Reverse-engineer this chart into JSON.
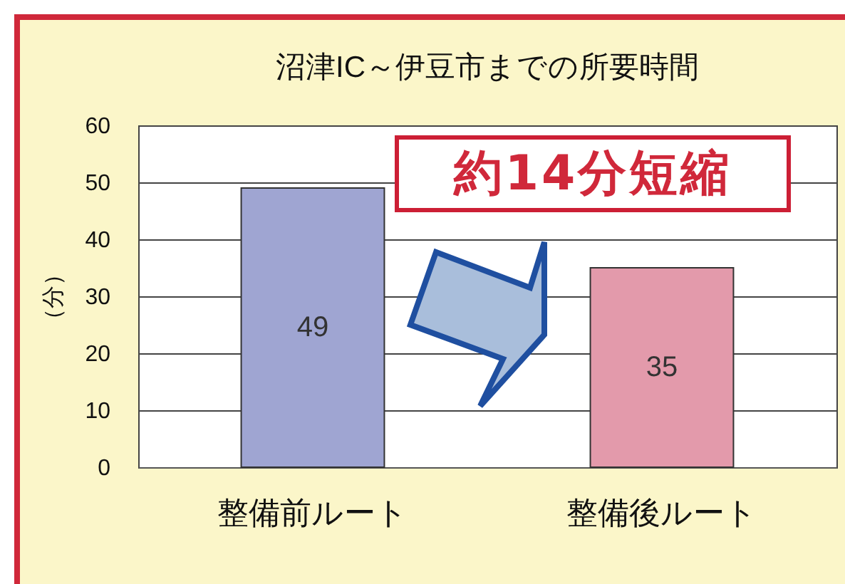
{
  "chart_data": {
    "type": "bar",
    "title": "沼津IC～伊豆市までの所要時間",
    "ylabel": "（分）",
    "categories": [
      "整備前ルート",
      "整備後ルート"
    ],
    "values": [
      49,
      35
    ],
    "colors": [
      "#9fa5d2",
      "#e39aab"
    ],
    "ylim": [
      0,
      60
    ],
    "yticks": [
      0,
      10,
      20,
      30,
      40,
      50,
      60
    ],
    "grid": "y",
    "data_labels": true,
    "annotations": [
      "約14分短縮"
    ]
  }
}
